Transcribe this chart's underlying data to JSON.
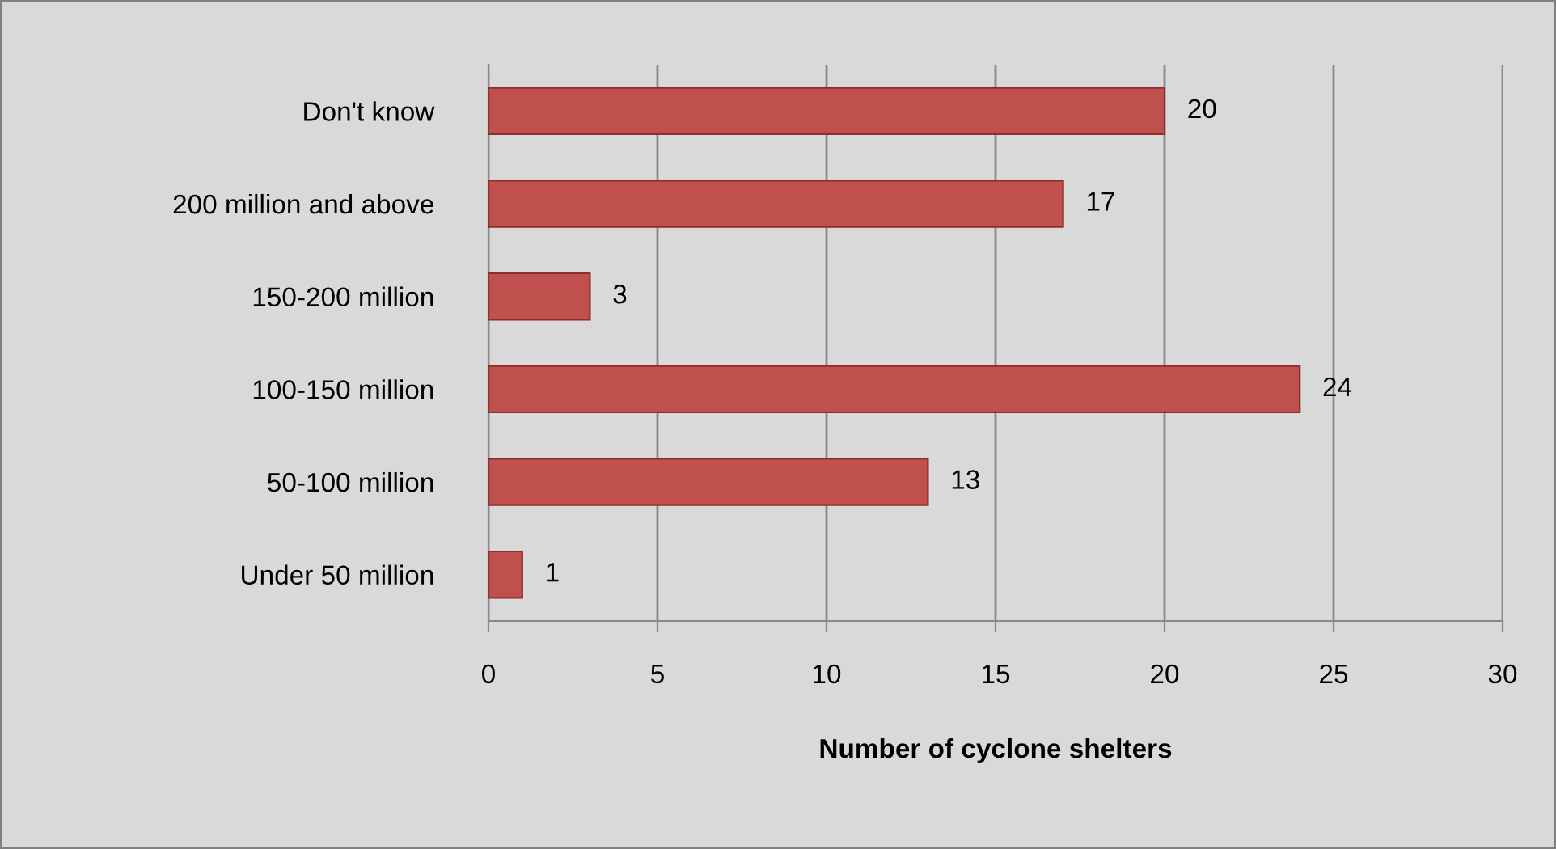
{
  "chart_data": {
    "type": "bar",
    "orientation": "horizontal",
    "categories": [
      "Don't know",
      "200 million and above",
      "150-200 million",
      "100-150 million",
      "50-100 million",
      "Under 50 million"
    ],
    "values": [
      20,
      17,
      3,
      24,
      13,
      1
    ],
    "color": "#c0504d",
    "xlabel": "Number of cyclone shelters",
    "xlim": [
      0,
      30
    ],
    "xticks": [
      0,
      5,
      10,
      15,
      20,
      25,
      30
    ],
    "grid": "x",
    "data_labels": true
  }
}
